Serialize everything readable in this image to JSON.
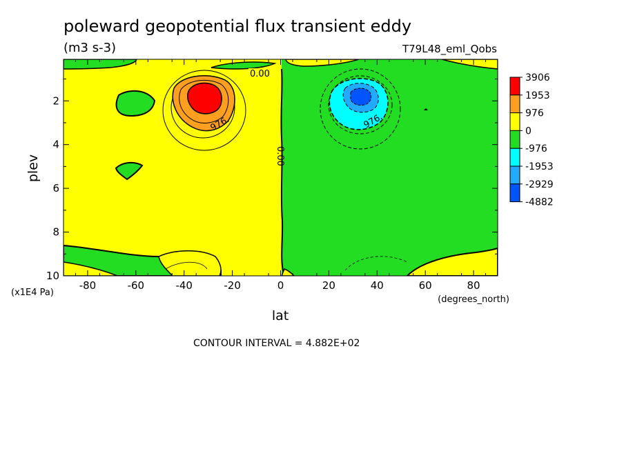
{
  "chart_data": {
    "type": "contour",
    "title": "poleward geopotential flux transient eddy",
    "units": "(m3 s-3)",
    "run_label": "T79L48_eml_Qobs",
    "xlabel": "lat",
    "x_units": "(degrees_north)",
    "ylabel": "plev",
    "y_units": "(x1E4 Pa)",
    "xlim": [
      -90,
      90
    ],
    "ylim": [
      10,
      0.1
    ],
    "y_inverted": true,
    "x_ticks": [
      "-80",
      "-60",
      "-40",
      "-20",
      "0",
      "20",
      "40",
      "60",
      "80"
    ],
    "y_ticks": [
      "2",
      "4",
      "6",
      "8",
      "10"
    ],
    "contour_interval_text": "CONTOUR INTERVAL = 4.882E+02",
    "contour_labels": [
      "0.00",
      "976.",
      "0.00",
      "976."
    ],
    "colorbar": {
      "levels": [
        "3906",
        "1953",
        "976",
        "0",
        "-976",
        "-1953",
        "-2929",
        "-4882"
      ],
      "colors": [
        "#ff0000",
        "#ff9f1f",
        "#ffff00",
        "#22dd22",
        "#00ffff",
        "#22aaff",
        "#0055ff"
      ]
    },
    "features": [
      {
        "name": "positive maximum",
        "lat": -33,
        "plev": 1.9,
        "value": 3906
      },
      {
        "name": "negative minimum",
        "lat": 33,
        "plev": 1.9,
        "value": -2929
      },
      {
        "name": "zero line",
        "lat": 0
      }
    ]
  }
}
